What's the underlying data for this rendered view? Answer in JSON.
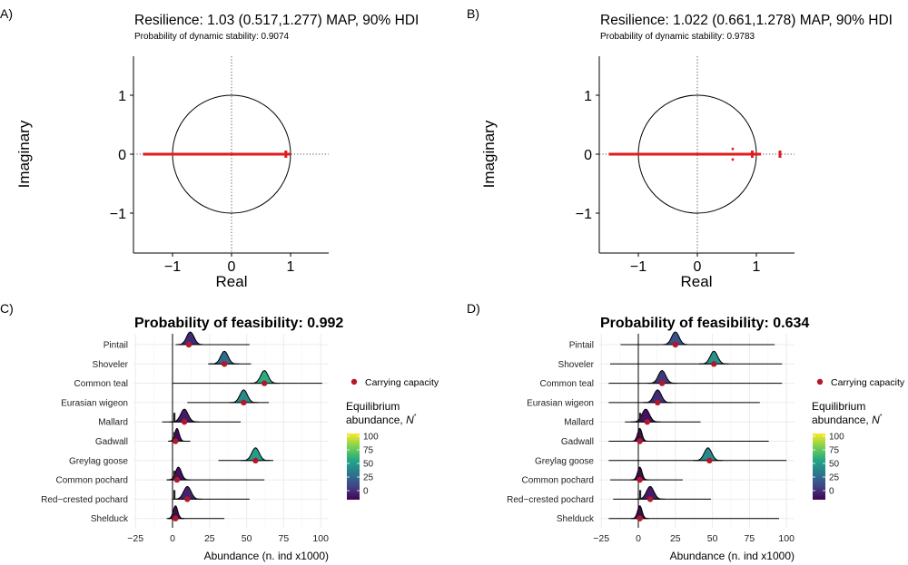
{
  "chart_data": [
    {
      "panel": "A)",
      "type": "scatter",
      "title": "Resilience: 1.03 (0.517,1.277) MAP, 90% HDI",
      "subtitle": "Probability of dynamic stability: 0.9074",
      "xlabel": "Real",
      "ylabel": "Imaginary",
      "xlim": [
        -1.65,
        1.65
      ],
      "ylim": [
        -1.65,
        1.65
      ],
      "xticks": [
        "−1",
        "0",
        "1"
      ],
      "yticks": [
        "−1",
        "0",
        "1"
      ],
      "xtick_values": [
        -1,
        0,
        1
      ],
      "ytick_values": [
        -1,
        0,
        1
      ],
      "unit_circle": true,
      "eigenvalue_band": {
        "real_min": -1.5,
        "real_max": 1.0,
        "imag": 0
      },
      "eigenvalue_points": [
        {
          "re": 0.92,
          "im": 0
        }
      ],
      "color": "#e31a1c"
    },
    {
      "panel": "B)",
      "type": "scatter",
      "title": "Resilience: 1.022 (0.661,1.278) MAP, 90% HDI",
      "subtitle": "Probability of dynamic stability: 0.9783",
      "xlabel": "Real",
      "ylabel": "Imaginary",
      "xlim": [
        -1.65,
        1.65
      ],
      "ylim": [
        -1.65,
        1.65
      ],
      "xticks": [
        "−1",
        "0",
        "1"
      ],
      "yticks": [
        "−1",
        "0",
        "1"
      ],
      "xtick_values": [
        -1,
        0,
        1
      ],
      "ytick_values": [
        -1,
        0,
        1
      ],
      "unit_circle": true,
      "eigenvalue_band": {
        "real_min": -1.5,
        "real_max": 1.08,
        "imag": 0
      },
      "eigenvalue_points": [
        {
          "re": 0.6,
          "im": 0.09
        },
        {
          "re": 0.6,
          "im": -0.09
        },
        {
          "re": 0.93,
          "im": 0
        },
        {
          "re": 1.4,
          "im": 0
        }
      ],
      "color": "#e31a1c"
    },
    {
      "panel": "C)",
      "type": "ridgeline",
      "title": "Probability of feasibility:  0.992",
      "xlabel": "Abundance (n. ind x1000)",
      "xlim": [
        -26,
        105
      ],
      "xticks": [
        "−25",
        "0",
        "25",
        "50",
        "75",
        "100"
      ],
      "xtick_values": [
        -25,
        0,
        25,
        50,
        75,
        100
      ],
      "legend_point": "Carrying capacity",
      "legend_title": "Equilibrium abundance, N*",
      "colorbar_ticks": [
        "100",
        "75",
        "50",
        "25",
        "0"
      ],
      "species": [
        {
          "name": "Pintail",
          "mode": 12,
          "spread": 2.5,
          "min": 10,
          "max": 52,
          "K": 11
        },
        {
          "name": "Shoveler",
          "mode": 35,
          "spread": 2.5,
          "min": 24,
          "max": 53,
          "K": 35
        },
        {
          "name": "Common teal",
          "mode": 62,
          "spread": 2.5,
          "min": 0,
          "max": 101,
          "K": 62
        },
        {
          "name": "Eurasian wigeon",
          "mode": 48,
          "spread": 2.5,
          "min": 10,
          "max": 65,
          "K": 48
        },
        {
          "name": "Mallard",
          "mode": 8,
          "spread": 2.5,
          "min": -7,
          "max": 46,
          "K": 8
        },
        {
          "name": "Gadwall",
          "mode": 3,
          "spread": 1.5,
          "min": 0,
          "max": 12,
          "K": 2
        },
        {
          "name": "Greylag goose",
          "mode": 56,
          "spread": 2.5,
          "min": 31,
          "max": 68,
          "K": 56
        },
        {
          "name": "Common pochard",
          "mode": 4,
          "spread": 2,
          "min": -4,
          "max": 62,
          "K": 3
        },
        {
          "name": "Red−crested pochard",
          "mode": 10,
          "spread": 2.5,
          "min": 0,
          "max": 52,
          "K": 10
        },
        {
          "name": "Shelduck",
          "mode": 2,
          "spread": 1.5,
          "min": -3,
          "max": 35,
          "K": 2
        }
      ]
    },
    {
      "panel": "D)",
      "type": "ridgeline",
      "title": "Probability of feasibility:  0.634",
      "xlabel": "Abundance (n. ind x1000)",
      "xlim": [
        -26,
        105
      ],
      "xticks": [
        "−25",
        "0",
        "25",
        "50",
        "75",
        "100"
      ],
      "xtick_values": [
        -25,
        0,
        25,
        50,
        75,
        100
      ],
      "legend_point": "Carrying capacity",
      "legend_title": "Equilibrium abundance, N*",
      "colorbar_ticks": [
        "100",
        "75",
        "50",
        "25",
        "0"
      ],
      "species": [
        {
          "name": "Pintail",
          "mode": 25,
          "spread": 2.5,
          "min": -12,
          "max": 92,
          "K": 25
        },
        {
          "name": "Shoveler",
          "mode": 51,
          "spread": 2.5,
          "min": -19,
          "max": 97,
          "K": 51
        },
        {
          "name": "Common teal",
          "mode": 16,
          "spread": 2.5,
          "min": -20,
          "max": 97,
          "K": 16
        },
        {
          "name": "Eurasian wigeon",
          "mode": 13,
          "spread": 2.5,
          "min": -20,
          "max": 82,
          "K": 13
        },
        {
          "name": "Mallard",
          "mode": 5,
          "spread": 2.5,
          "min": -9,
          "max": 42,
          "K": 6
        },
        {
          "name": "Gadwall",
          "mode": 1,
          "spread": 1.5,
          "min": -20,
          "max": 88,
          "K": 1
        },
        {
          "name": "Greylag goose",
          "mode": 47,
          "spread": 2.5,
          "min": -20,
          "max": 100,
          "K": 48
        },
        {
          "name": "Common pochard",
          "mode": 1,
          "spread": 1.5,
          "min": -19,
          "max": 30,
          "K": 1
        },
        {
          "name": "Red−crested pochard",
          "mode": 8,
          "spread": 2.5,
          "min": -17,
          "max": 49,
          "K": 8
        },
        {
          "name": "Shelduck",
          "mode": 1,
          "spread": 1.5,
          "min": -20,
          "max": 95,
          "K": 1
        }
      ]
    }
  ],
  "colors": {
    "eigen": "#e31a1c",
    "carrying_capacity": "#b2182b",
    "grid": "#e5e5e5"
  }
}
